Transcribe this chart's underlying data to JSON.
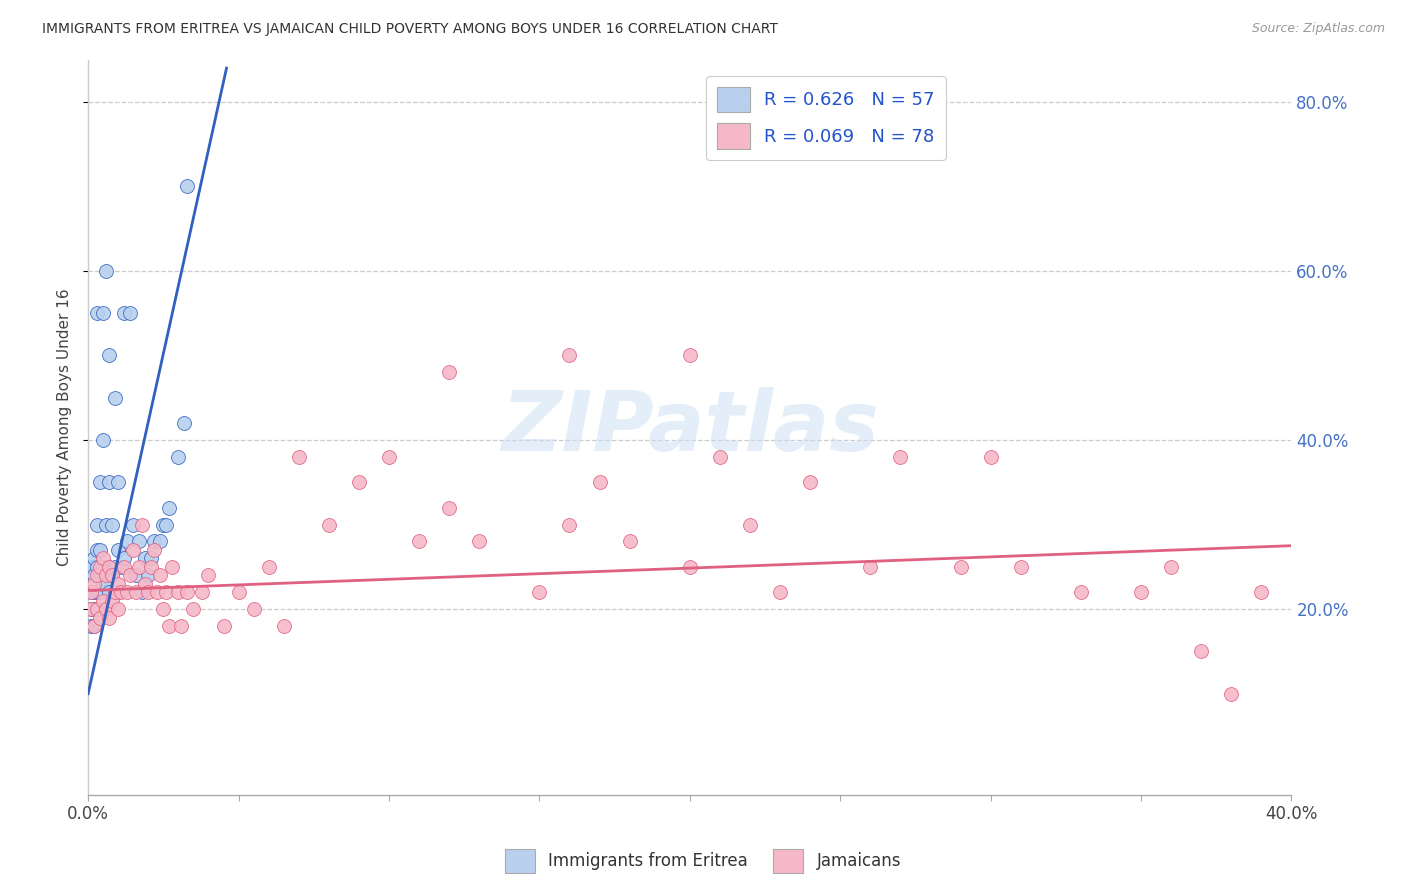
{
  "title": "IMMIGRANTS FROM ERITREA VS JAMAICAN CHILD POVERTY AMONG BOYS UNDER 16 CORRELATION CHART",
  "source": "Source: ZipAtlas.com",
  "ylabel": "Child Poverty Among Boys Under 16",
  "xmin": 0.0,
  "xmax": 0.4,
  "ymin": -0.02,
  "ymax": 0.85,
  "background_color": "#ffffff",
  "scatter_color_eritrea": "#b8d0ed",
  "scatter_color_jamaican": "#f5b8c8",
  "line_color_eritrea": "#3060c0",
  "line_color_jamaican": "#e06080",
  "watermark": "ZIPatlas",
  "legend_labels": [
    "Immigrants from Eritrea",
    "Jamaicans"
  ],
  "yticks": [
    0.2,
    0.4,
    0.6,
    0.8
  ],
  "xtick_labels_show": [
    "0.0%",
    "40.0%"
  ],
  "xtick_positions_show": [
    0.0,
    0.4
  ],
  "eritrea_x": [
    0.001,
    0.001,
    0.001,
    0.001,
    0.002,
    0.002,
    0.002,
    0.002,
    0.002,
    0.003,
    0.003,
    0.003,
    0.003,
    0.003,
    0.003,
    0.004,
    0.004,
    0.004,
    0.004,
    0.005,
    0.005,
    0.005,
    0.005,
    0.006,
    0.006,
    0.006,
    0.007,
    0.007,
    0.007,
    0.007,
    0.008,
    0.008,
    0.009,
    0.009,
    0.01,
    0.01,
    0.01,
    0.011,
    0.012,
    0.012,
    0.013,
    0.014,
    0.015,
    0.016,
    0.017,
    0.018,
    0.019,
    0.02,
    0.021,
    0.022,
    0.024,
    0.025,
    0.026,
    0.027,
    0.03,
    0.032,
    0.033
  ],
  "eritrea_y": [
    0.18,
    0.2,
    0.22,
    0.25,
    0.18,
    0.2,
    0.22,
    0.24,
    0.26,
    0.2,
    0.22,
    0.25,
    0.27,
    0.3,
    0.55,
    0.22,
    0.24,
    0.27,
    0.35,
    0.23,
    0.25,
    0.4,
    0.55,
    0.23,
    0.3,
    0.6,
    0.22,
    0.25,
    0.35,
    0.5,
    0.24,
    0.3,
    0.25,
    0.45,
    0.22,
    0.27,
    0.35,
    0.25,
    0.26,
    0.55,
    0.28,
    0.55,
    0.3,
    0.24,
    0.28,
    0.22,
    0.26,
    0.24,
    0.26,
    0.28,
    0.28,
    0.3,
    0.3,
    0.32,
    0.38,
    0.42,
    0.7
  ],
  "jamaican_x": [
    0.001,
    0.001,
    0.002,
    0.002,
    0.003,
    0.003,
    0.004,
    0.004,
    0.005,
    0.005,
    0.006,
    0.006,
    0.007,
    0.007,
    0.008,
    0.008,
    0.009,
    0.01,
    0.01,
    0.011,
    0.012,
    0.013,
    0.014,
    0.015,
    0.016,
    0.017,
    0.018,
    0.019,
    0.02,
    0.021,
    0.022,
    0.023,
    0.024,
    0.025,
    0.026,
    0.027,
    0.028,
    0.03,
    0.031,
    0.033,
    0.035,
    0.038,
    0.04,
    0.045,
    0.05,
    0.055,
    0.06,
    0.065,
    0.07,
    0.08,
    0.09,
    0.1,
    0.11,
    0.12,
    0.13,
    0.15,
    0.16,
    0.17,
    0.18,
    0.2,
    0.21,
    0.22,
    0.23,
    0.24,
    0.26,
    0.27,
    0.29,
    0.31,
    0.33,
    0.35,
    0.36,
    0.37,
    0.38,
    0.39,
    0.16,
    0.12,
    0.2,
    0.3
  ],
  "jamaican_y": [
    0.2,
    0.22,
    0.18,
    0.23,
    0.2,
    0.24,
    0.19,
    0.25,
    0.21,
    0.26,
    0.2,
    0.24,
    0.19,
    0.25,
    0.21,
    0.24,
    0.22,
    0.2,
    0.23,
    0.22,
    0.25,
    0.22,
    0.24,
    0.27,
    0.22,
    0.25,
    0.3,
    0.23,
    0.22,
    0.25,
    0.27,
    0.22,
    0.24,
    0.2,
    0.22,
    0.18,
    0.25,
    0.22,
    0.18,
    0.22,
    0.2,
    0.22,
    0.24,
    0.18,
    0.22,
    0.2,
    0.25,
    0.18,
    0.38,
    0.3,
    0.35,
    0.38,
    0.28,
    0.32,
    0.28,
    0.22,
    0.3,
    0.35,
    0.28,
    0.25,
    0.38,
    0.3,
    0.22,
    0.35,
    0.25,
    0.38,
    0.25,
    0.25,
    0.22,
    0.22,
    0.25,
    0.15,
    0.1,
    0.22,
    0.5,
    0.48,
    0.5,
    0.38
  ],
  "eritrea_line_x": [
    0.0,
    0.046
  ],
  "eritrea_line_y": [
    0.1,
    0.84
  ],
  "jamaican_line_x": [
    0.0,
    0.4
  ],
  "jamaican_line_y": [
    0.222,
    0.275
  ]
}
